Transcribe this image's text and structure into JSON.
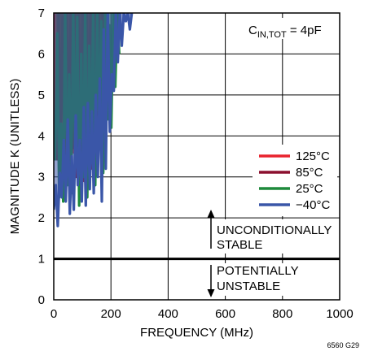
{
  "chart_data": {
    "type": "line",
    "xlabel": "FREQUENCY (MHz)",
    "ylabel": "MAGNITUDE K (UNITLESS)",
    "xlim": [
      0,
      1000
    ],
    "ylim": [
      0,
      7
    ],
    "x_ticks": [
      "0",
      "200",
      "400",
      "600",
      "800",
      "1000"
    ],
    "y_ticks": [
      "0",
      "1",
      "2",
      "3",
      "4",
      "5",
      "6",
      "7"
    ],
    "grid": true,
    "legend_position": "right",
    "condition": {
      "main": "C",
      "sub": "IN,TOT",
      "rest": " = 4pF"
    },
    "reference_line": {
      "y": 1
    },
    "annotations": {
      "stable": [
        "UNCONDITIONALLY",
        "STABLE"
      ],
      "unstable": [
        "POTENTIALLY",
        "UNSTABLE"
      ]
    },
    "figure_id": "6560 G29",
    "series": [
      {
        "name": "125°C",
        "color": "#e8232d",
        "x": [
          0,
          5,
          10,
          15,
          20,
          25,
          30,
          35,
          40,
          45,
          50,
          55,
          60,
          65,
          70,
          75,
          80,
          85,
          90,
          95,
          100,
          105,
          110,
          115,
          120,
          125,
          130,
          135,
          140,
          145,
          150,
          155,
          160,
          165,
          170,
          175,
          180,
          185,
          190
        ],
        "y": [
          3.6,
          7.0,
          4.2,
          7.0,
          3.9,
          7.0,
          3.3,
          7.0,
          3.0,
          7.0,
          3.4,
          7.0,
          2.9,
          7.0,
          3.6,
          7.0,
          3.1,
          7.0,
          3.8,
          7.0,
          3.3,
          7.0,
          3.2,
          7.0,
          4.1,
          7.0,
          3.4,
          7.0,
          4.6,
          7.0,
          3.7,
          7.0,
          4.8,
          7.0,
          5.6,
          7.0,
          5.2,
          7.0,
          7.0
        ]
      },
      {
        "name": "85°C",
        "color": "#8b0f2e",
        "x": [
          10,
          17,
          24,
          31,
          38,
          45,
          52,
          59,
          66,
          73,
          80,
          87,
          94,
          101,
          108,
          115,
          122,
          129,
          136,
          143,
          150,
          157,
          164,
          171,
          178,
          185,
          192
        ],
        "y": [
          3.4,
          7.0,
          3.8,
          6.9,
          3.1,
          7.0,
          3.3,
          7.0,
          3.7,
          7.0,
          3.0,
          7.0,
          3.6,
          7.0,
          2.9,
          7.0,
          4.0,
          7.0,
          3.2,
          7.0,
          4.5,
          7.0,
          4.3,
          7.0,
          3.9,
          7.0,
          7.0
        ]
      },
      {
        "name": "25°C",
        "color": "#1e8a3c",
        "x": [
          5,
          12,
          19,
          26,
          33,
          40,
          47,
          54,
          61,
          68,
          75,
          82,
          89,
          96,
          103,
          110,
          117,
          124,
          131,
          138,
          145,
          152,
          159,
          166,
          173,
          180,
          187,
          194,
          201,
          208,
          215,
          222,
          229
        ],
        "y": [
          3.4,
          6.5,
          2.5,
          4.3,
          2.4,
          7.0,
          2.8,
          5.5,
          2.6,
          7.0,
          3.3,
          6.9,
          2.3,
          6.0,
          3.0,
          7.0,
          2.5,
          6.2,
          3.6,
          7.0,
          2.8,
          7.0,
          4.0,
          6.8,
          3.1,
          7.0,
          4.4,
          6.7,
          4.2,
          7.0,
          5.2,
          7.0,
          6.0
        ]
      },
      {
        "name": "−40°C",
        "color": "#3a56a8",
        "x": [
          0,
          7,
          14,
          21,
          28,
          35,
          42,
          49,
          56,
          63,
          70,
          77,
          84,
          91,
          98,
          105,
          112,
          119,
          126,
          133,
          140,
          147,
          154,
          161,
          168,
          175,
          182,
          189,
          196,
          203,
          210,
          217,
          224,
          231,
          238,
          245,
          252,
          259,
          266,
          273
        ],
        "y": [
          2.2,
          2.8,
          1.8,
          3.1,
          2.5,
          3.9,
          2.4,
          4.4,
          2.1,
          3.5,
          2.2,
          4.5,
          2.8,
          3.9,
          2.4,
          4.7,
          2.3,
          4.8,
          2.7,
          4.6,
          2.6,
          5.0,
          3.0,
          5.4,
          2.4,
          6.6,
          3.2,
          7.0,
          4.1,
          5.5,
          5.1,
          7.0,
          5.8,
          7.0,
          6.2,
          7.0,
          6.8,
          7.0,
          6.6,
          7.0
        ]
      }
    ]
  }
}
